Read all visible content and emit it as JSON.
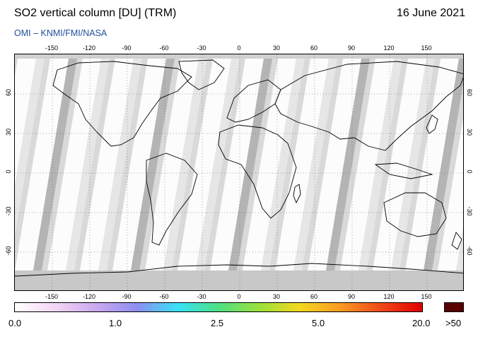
{
  "header": {
    "title": "SO2 vertical column [DU] (TRM)",
    "date": "16 June 2021",
    "credit": "OMI  –  KNMI/FMI/NASA"
  },
  "map": {
    "lon_labels": [
      "-150",
      "-120",
      "-90",
      "-60",
      "-30",
      "0",
      "30",
      "60",
      "90",
      "120",
      "150"
    ],
    "lat_labels": [
      "60",
      "30",
      "0",
      "-30",
      "-60"
    ],
    "colors": {
      "background": "#d9d9d9",
      "swath_light": "#e6e6e6",
      "swath_dark": "#b4b4b4",
      "ocean_fill": "#ffffff",
      "land_outline": "#000000"
    }
  },
  "colorbar": {
    "labels": [
      "0.0",
      "1.0",
      "2.5",
      "5.0",
      "20.0",
      ">50"
    ],
    "gradient": [
      "#ffffff",
      "#f4d6f4",
      "#c9a8f0",
      "#8f8ef0",
      "#39e0f8",
      "#4de084",
      "#9be03c",
      "#f4d820",
      "#f89a24",
      "#f04818",
      "#e00000"
    ],
    "over_color": "#5a0000"
  }
}
